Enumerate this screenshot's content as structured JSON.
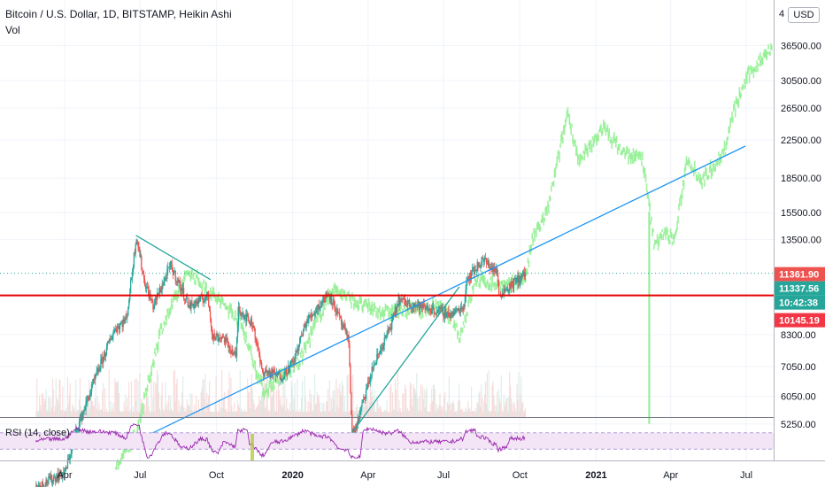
{
  "header": {
    "title": "Bitcoin / U.S. Dollar, 1D, BITSTAMP, Heikin Ashi",
    "vol_label": "Vol",
    "currency_button": "USD"
  },
  "rsi_panel": {
    "label": "RSI (14, close)",
    "upper_level": 70,
    "lower_level": 30
  },
  "price_axis": {
    "ticks": [
      "36500.00",
      "30500.00",
      "26500.00",
      "22500.00",
      "18500.00",
      "15500.00",
      "13500.00",
      "8300.00",
      "7050.00",
      "6050.00",
      "5250.00"
    ],
    "top_partial_tick": "4"
  },
  "price_tags": [
    {
      "value": "11361.90",
      "color": "#ef5350"
    },
    {
      "value": "11337.56",
      "color": "#26a69a"
    },
    {
      "value": "10:42:38",
      "color": "#26a69a"
    },
    {
      "value": "10145.19",
      "color": "#f23645"
    }
  ],
  "colors": {
    "up": "#26a69a",
    "down": "#ef5350",
    "ghost": "#90ee90",
    "trendline": "#2196f3",
    "wedge": "#26a69a",
    "support": "#e60000",
    "rsi_line": "#9c27b0",
    "rsi_band": "#f3e5f5"
  },
  "chart_data": {
    "type": "candlestick",
    "symbol": "Bitcoin / U.S. Dollar",
    "interval": "1D",
    "exchange": "BITSTAMP",
    "style": "Heikin Ashi",
    "x_ticks": [
      "Apr",
      "Jul",
      "Oct",
      "2020",
      "Apr",
      "Jul",
      "Oct",
      "2021",
      "Apr",
      "Jul"
    ],
    "y_scale": "log",
    "y_ticks": [
      36500,
      30500,
      26500,
      22500,
      18500,
      15500,
      13500,
      8300,
      7050,
      6050,
      5250
    ],
    "horizontal_line": 10145.19,
    "main_series": {
      "start": "2019-02-25",
      "end": "2020-10-07",
      "anchors": [
        [
          "2019-02-25",
          3800
        ],
        [
          "2019-04-01",
          4100
        ],
        [
          "2019-04-15",
          5100
        ],
        [
          "2019-05-12",
          7000
        ],
        [
          "2019-05-30",
          8500
        ],
        [
          "2019-06-14",
          9000
        ],
        [
          "2019-06-26",
          13800
        ],
        [
          "2019-07-05",
          11000
        ],
        [
          "2019-07-16",
          9600
        ],
        [
          "2019-08-06",
          11800
        ],
        [
          "2019-08-29",
          9600
        ],
        [
          "2019-09-20",
          10100
        ],
        [
          "2019-09-26",
          8200
        ],
        [
          "2019-10-08",
          8200
        ],
        [
          "2019-10-24",
          7400
        ],
        [
          "2019-10-27",
          9500
        ],
        [
          "2019-11-14",
          8700
        ],
        [
          "2019-11-24",
          6900
        ],
        [
          "2019-12-18",
          6700
        ],
        [
          "2020-01-01",
          7200
        ],
        [
          "2020-01-16",
          8800
        ],
        [
          "2020-02-13",
          10300
        ],
        [
          "2020-03-08",
          8000
        ],
        [
          "2020-03-12",
          5000
        ],
        [
          "2020-03-16",
          5100
        ],
        [
          "2020-04-06",
          7000
        ],
        [
          "2020-04-29",
          8800
        ],
        [
          "2020-05-07",
          9900
        ],
        [
          "2020-06-01",
          9600
        ],
        [
          "2020-07-10",
          9200
        ],
        [
          "2020-07-25",
          9600
        ],
        [
          "2020-07-28",
          11000
        ],
        [
          "2020-08-17",
          12200
        ],
        [
          "2020-09-03",
          11400
        ],
        [
          "2020-09-05",
          10200
        ],
        [
          "2020-09-20",
          10700
        ],
        [
          "2020-10-07",
          11361.9
        ]
      ]
    },
    "projection_series": {
      "start": "2019-06-01",
      "end": "2021-07-31",
      "anchors": [
        [
          "2019-06-01",
          4200
        ],
        [
          "2019-06-26",
          5000
        ],
        [
          "2019-07-25",
          8500
        ],
        [
          "2019-08-28",
          11500
        ],
        [
          "2019-09-25",
          10200
        ],
        [
          "2019-10-28",
          9000
        ],
        [
          "2019-11-26",
          6200
        ],
        [
          "2020-01-08",
          7200
        ],
        [
          "2020-01-28",
          8800
        ],
        [
          "2020-02-18",
          10500
        ],
        [
          "2020-03-20",
          9700
        ],
        [
          "2020-04-20",
          9300
        ],
        [
          "2020-05-21",
          9400
        ],
        [
          "2020-06-25",
          9500
        ],
        [
          "2020-07-10",
          9100
        ],
        [
          "2020-07-20",
          8200
        ],
        [
          "2020-08-08",
          11000
        ],
        [
          "2020-09-16",
          10600
        ],
        [
          "2020-10-08",
          11200
        ],
        [
          "2020-10-15",
          13500
        ],
        [
          "2020-11-02",
          15500
        ],
        [
          "2020-11-27",
          26000
        ],
        [
          "2020-12-11",
          20000
        ],
        [
          "2021-01-08",
          24000
        ],
        [
          "2021-02-03",
          21000
        ],
        [
          "2021-02-25",
          20500
        ],
        [
          "2021-03-12",
          13000
        ],
        [
          "2021-03-20",
          14000
        ],
        [
          "2021-04-05",
          13500
        ],
        [
          "2021-04-20",
          20500
        ],
        [
          "2021-05-08",
          18200
        ],
        [
          "2021-06-05",
          21500
        ],
        [
          "2021-06-15",
          26000
        ],
        [
          "2021-07-01",
          31000
        ],
        [
          "2021-07-31",
          36500
        ]
      ]
    },
    "projection_spike": {
      "date": "2021-03-06",
      "value": 5250
    },
    "trendlines": [
      {
        "name": "ascending support",
        "from": [
          "2019-07-15",
          5000
        ],
        "to": [
          "2021-06-30",
          21800
        ]
      },
      {
        "name": "wedge upper",
        "from": [
          "2019-06-26",
          13800
        ],
        "to": [
          "2019-09-24",
          11000
        ]
      },
      {
        "name": "wedge lower",
        "from": [
          "2020-03-12",
          5000
        ],
        "to": [
          "2020-07-20",
          10600
        ]
      }
    ],
    "rsi": {
      "period": 14,
      "source": "close",
      "overbought": 70,
      "oversold": 30,
      "range": [
        0,
        100
      ]
    }
  }
}
